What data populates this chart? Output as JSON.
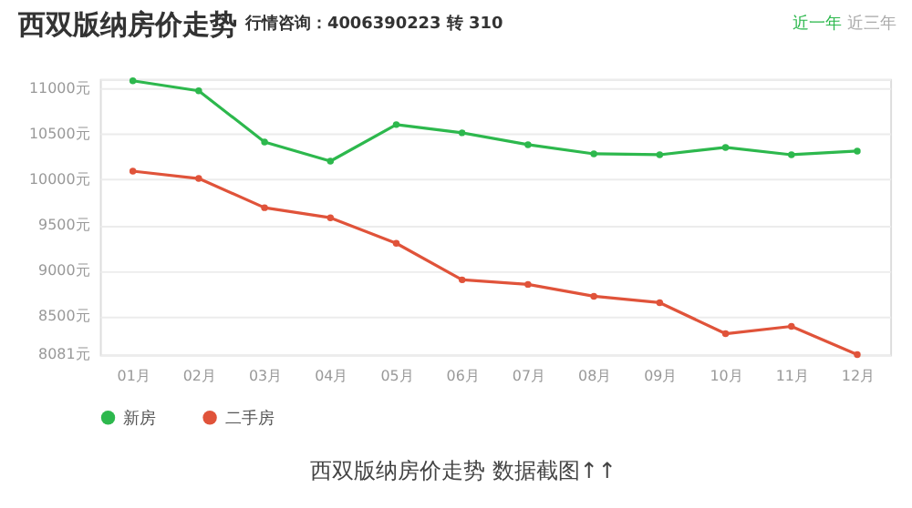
{
  "chart_data": {
    "type": "line",
    "title": "西双版纳房价走势",
    "annotations": [
      "行情咨询：4006390223 转 310",
      "近一年",
      "近三年",
      "西双版纳房价走势 数据截图↑↑"
    ],
    "categories": [
      "01月",
      "02月",
      "03月",
      "04月",
      "05月",
      "06月",
      "07月",
      "08月",
      "09月",
      "10月",
      "11月",
      "12月"
    ],
    "series": [
      {
        "name": "新房",
        "color": "#2db84d",
        "values": [
          11080,
          10970,
          10410,
          10200,
          10600,
          10510,
          10380,
          10280,
          10270,
          10350,
          10270,
          10310
        ]
      },
      {
        "name": "二手房",
        "color": "#e0533a",
        "values": [
          10090,
          10010,
          9690,
          9580,
          9300,
          8900,
          8850,
          8720,
          8650,
          8310,
          8390,
          8081
        ]
      }
    ],
    "ylim": [
      8081,
      11100
    ],
    "yticks": [
      {
        "value": 8081,
        "label": "8081元"
      },
      {
        "value": 8500,
        "label": "8500元"
      },
      {
        "value": 9000,
        "label": "9000元"
      },
      {
        "value": 9500,
        "label": "9500元"
      },
      {
        "value": 10000,
        "label": "10000元"
      },
      {
        "value": 10500,
        "label": "10500元"
      },
      {
        "value": 11000,
        "label": "11000元"
      },
      {
        "value": 11100,
        "label": null
      }
    ],
    "grid": "y",
    "legend": "bottom",
    "marker": "circle",
    "line_style": "solid"
  }
}
